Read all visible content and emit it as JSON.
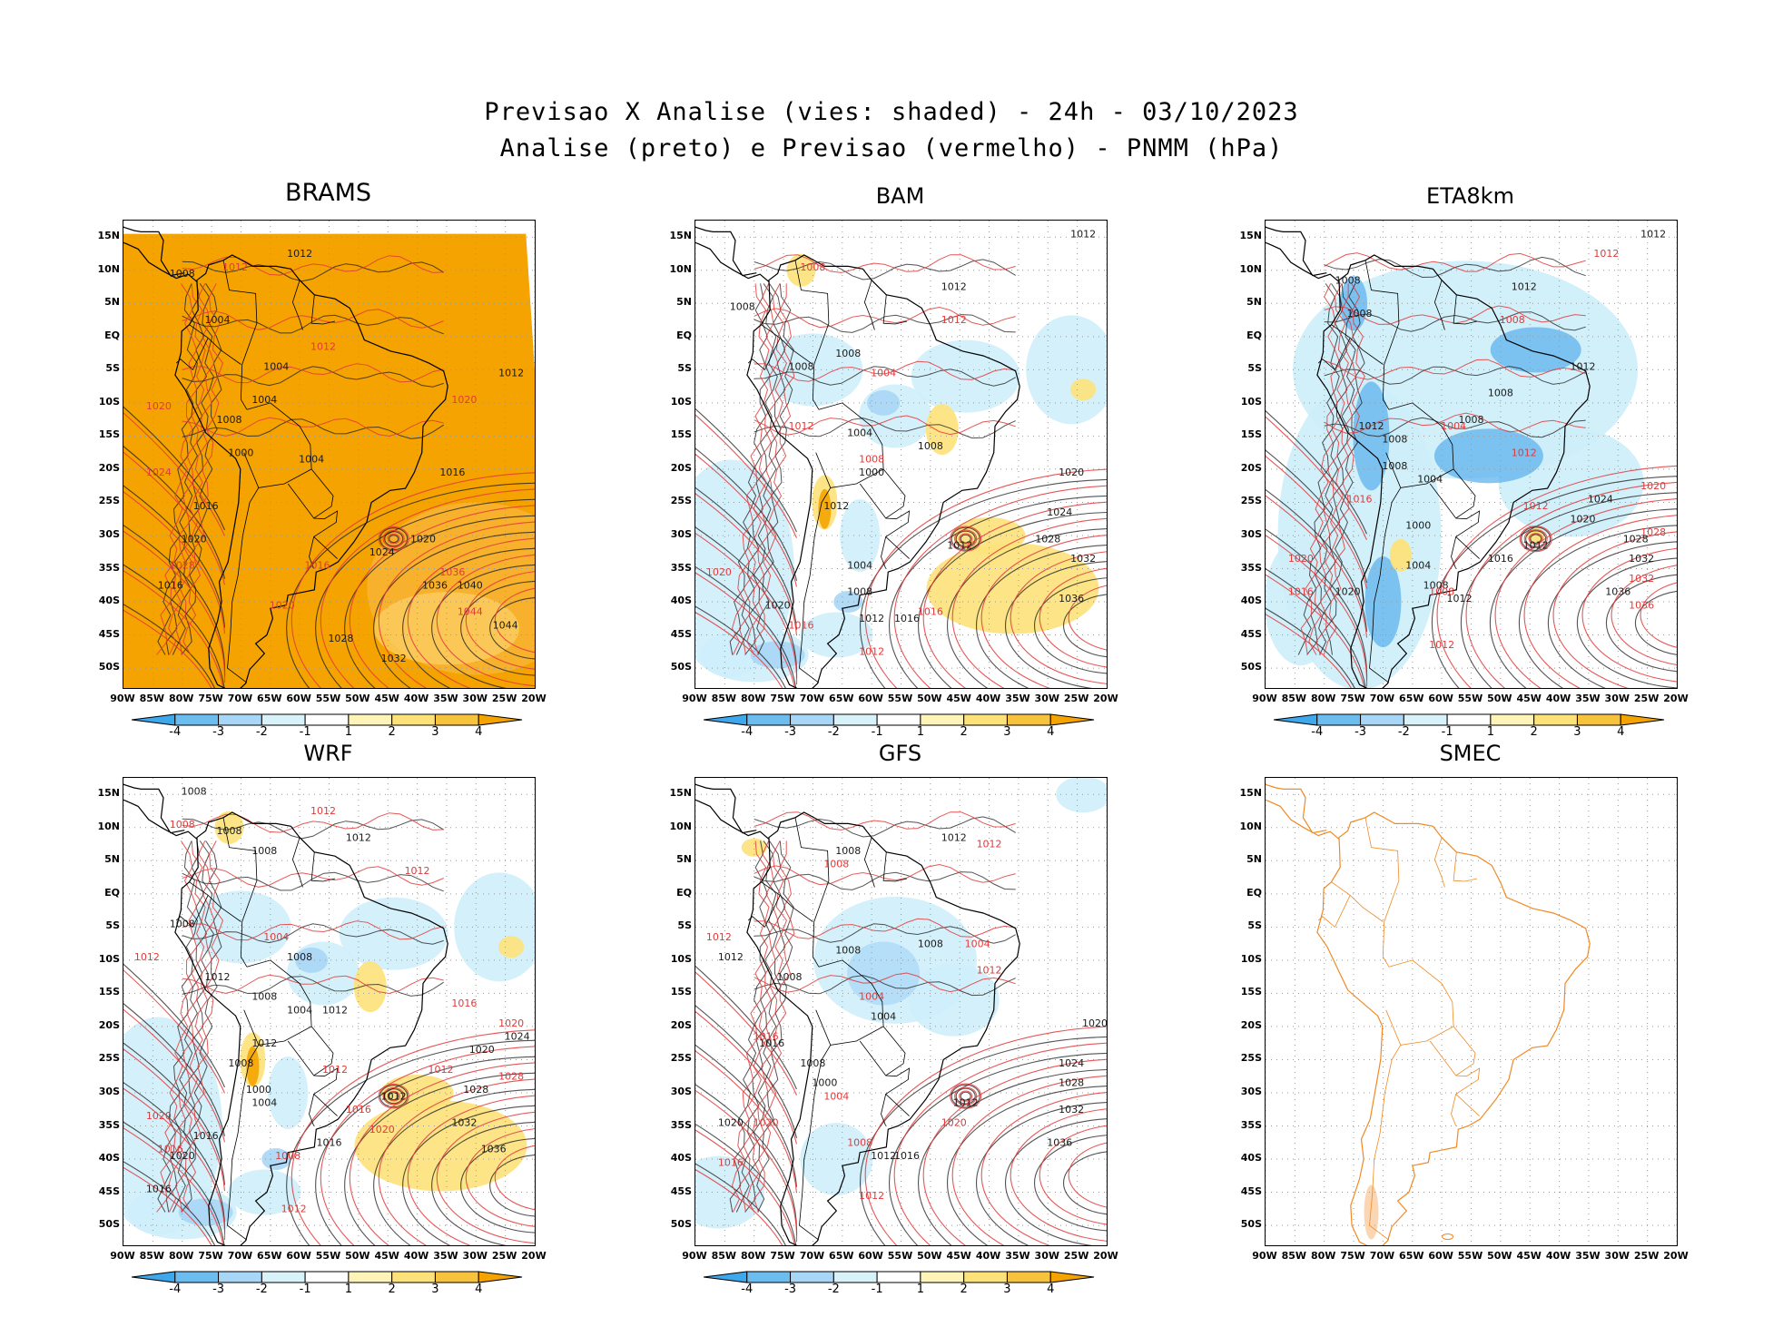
{
  "figure": {
    "title_line1": "Previsao X Analise (vies: shaded) - 24h - 03/10/2023",
    "title_line2": "Analise (preto) e Previsao (vermelho) - PNMM (hPa)"
  },
  "axes": {
    "lat_labels": [
      "15N",
      "10N",
      "5N",
      "EQ",
      "5S",
      "10S",
      "15S",
      "20S",
      "25S",
      "30S",
      "35S",
      "40S",
      "45S",
      "50S"
    ],
    "lon_labels": [
      "90W",
      "85W",
      "80W",
      "75W",
      "70W",
      "65W",
      "60W",
      "55W",
      "50W",
      "45W",
      "40W",
      "35W",
      "30W",
      "25W",
      "20W"
    ],
    "lat_values": [
      15,
      10,
      5,
      0,
      -5,
      -10,
      -15,
      -20,
      -25,
      -30,
      -35,
      -40,
      -45,
      -50
    ],
    "lon_values": [
      -90,
      -85,
      -80,
      -75,
      -70,
      -65,
      -60,
      -55,
      -50,
      -45,
      -40,
      -35,
      -30,
      -25,
      -20
    ],
    "lat_range": [
      -53,
      17.5
    ],
    "lon_range": [
      -90,
      -20
    ]
  },
  "colorbar": {
    "labels": [
      "-4",
      "-3",
      "-2",
      "-1",
      "1",
      "2",
      "3",
      "4"
    ],
    "colors": [
      "#3ea8ec",
      "#6bbdf0",
      "#a8d6f6",
      "#d8f2fa",
      "#ffffff",
      "#fff4b8",
      "#fde27a",
      "#f8c33c",
      "#f4a300"
    ]
  },
  "colors": {
    "analysis_contour": "#1a1a1a",
    "forecast_contour": "#e23a3a",
    "continent_outline": "#000000",
    "smec_outline": "#f08a24",
    "bias_positive_strong": "#f4a300",
    "bias_positive": "#fde27a",
    "bias_negative": "#a8d6f6",
    "bias_negative_strong": "#5fb3ee"
  },
  "panels": [
    {
      "name": "BRAMS",
      "bias": "strong-positive",
      "analysis_labels": [
        {
          "lon": -60,
          "lat": 12,
          "v": "1012"
        },
        {
          "lon": -80,
          "lat": 9,
          "v": "1008"
        },
        {
          "lon": -74,
          "lat": 2,
          "v": "1004"
        },
        {
          "lon": -64,
          "lat": -5,
          "v": "1004"
        },
        {
          "lon": -66,
          "lat": -10,
          "v": "1004"
        },
        {
          "lon": -72,
          "lat": -13,
          "v": "1008"
        },
        {
          "lon": -70,
          "lat": -18,
          "v": "1000"
        },
        {
          "lon": -58,
          "lat": -19,
          "v": "1004"
        },
        {
          "lon": -76,
          "lat": -26,
          "v": "1016"
        },
        {
          "lon": -78,
          "lat": -31,
          "v": "1020"
        },
        {
          "lon": -82,
          "lat": -38,
          "v": "1016"
        },
        {
          "lon": -46,
          "lat": -33,
          "v": "1024"
        },
        {
          "lon": -37,
          "lat": -38,
          "v": "1036"
        },
        {
          "lon": -31,
          "lat": -38,
          "v": "1040"
        },
        {
          "lon": -25,
          "lat": -44,
          "v": "1044"
        },
        {
          "lon": -53,
          "lat": -46,
          "v": "1028"
        },
        {
          "lon": -44,
          "lat": -49,
          "v": "1032"
        },
        {
          "lon": -34,
          "lat": -21,
          "v": "1016"
        },
        {
          "lon": -39,
          "lat": -31,
          "v": "1020"
        },
        {
          "lon": -24,
          "lat": -6,
          "v": "1012"
        }
      ],
      "forecast_labels": [
        {
          "lon": -71,
          "lat": 10,
          "v": "1012"
        },
        {
          "lon": -56,
          "lat": -2,
          "v": "1012"
        },
        {
          "lon": -84,
          "lat": -11,
          "v": "1020"
        },
        {
          "lon": -84,
          "lat": -21,
          "v": "1024"
        },
        {
          "lon": -80,
          "lat": -35,
          "v": "1028"
        },
        {
          "lon": -63,
          "lat": -41,
          "v": "1020"
        },
        {
          "lon": -57,
          "lat": -35,
          "v": "1016"
        },
        {
          "lon": -32,
          "lat": -10,
          "v": "1020"
        },
        {
          "lon": -34,
          "lat": -36,
          "v": "1036"
        },
        {
          "lon": -31,
          "lat": -42,
          "v": "1044"
        }
      ]
    },
    {
      "name": "BAM",
      "bias": "mixed",
      "analysis_labels": [
        {
          "lon": -24,
          "lat": 15,
          "v": "1012"
        },
        {
          "lon": -46,
          "lat": 7,
          "v": "1012"
        },
        {
          "lon": -82,
          "lat": 4,
          "v": "1008"
        },
        {
          "lon": -72,
          "lat": -5,
          "v": "1008"
        },
        {
          "lon": -64,
          "lat": -3,
          "v": "1008"
        },
        {
          "lon": -62,
          "lat": -15,
          "v": "1004"
        },
        {
          "lon": -60,
          "lat": -21,
          "v": "1000"
        },
        {
          "lon": -66,
          "lat": -26,
          "v": "1012"
        },
        {
          "lon": -62,
          "lat": -35,
          "v": "1004"
        },
        {
          "lon": -62,
          "lat": -39,
          "v": "1008"
        },
        {
          "lon": -60,
          "lat": -43,
          "v": "1012"
        },
        {
          "lon": -45,
          "lat": -32,
          "v": "1012"
        },
        {
          "lon": -26,
          "lat": -21,
          "v": "1020"
        },
        {
          "lon": -28,
          "lat": -27,
          "v": "1024"
        },
        {
          "lon": -30,
          "lat": -31,
          "v": "1028"
        },
        {
          "lon": -24,
          "lat": -34,
          "v": "1032"
        },
        {
          "lon": -26,
          "lat": -40,
          "v": "1036"
        },
        {
          "lon": -54,
          "lat": -43,
          "v": "1016"
        },
        {
          "lon": -76,
          "lat": -41,
          "v": "1020"
        },
        {
          "lon": -50,
          "lat": -17,
          "v": "1008"
        }
      ],
      "forecast_labels": [
        {
          "lon": -70,
          "lat": 10,
          "v": "1008"
        },
        {
          "lon": -46,
          "lat": 2,
          "v": "1012"
        },
        {
          "lon": -58,
          "lat": -6,
          "v": "1004"
        },
        {
          "lon": -72,
          "lat": -14,
          "v": "1012"
        },
        {
          "lon": -60,
          "lat": -19,
          "v": "1008"
        },
        {
          "lon": -50,
          "lat": -42,
          "v": "1016"
        },
        {
          "lon": -86,
          "lat": -36,
          "v": "1020"
        },
        {
          "lon": -60,
          "lat": -48,
          "v": "1012"
        },
        {
          "lon": -72,
          "lat": -44,
          "v": "1016"
        }
      ]
    },
    {
      "name": "ETA8km",
      "bias": "negative",
      "analysis_labels": [
        {
          "lon": -24,
          "lat": 15,
          "v": "1012"
        },
        {
          "lon": -46,
          "lat": 7,
          "v": "1012"
        },
        {
          "lon": -76,
          "lat": 8,
          "v": "1008"
        },
        {
          "lon": -74,
          "lat": 3,
          "v": "1008"
        },
        {
          "lon": -36,
          "lat": -5,
          "v": "1012"
        },
        {
          "lon": -50,
          "lat": -9,
          "v": "1008"
        },
        {
          "lon": -55,
          "lat": -13,
          "v": "1008"
        },
        {
          "lon": -68,
          "lat": -16,
          "v": "1008"
        },
        {
          "lon": -72,
          "lat": -14,
          "v": "1012"
        },
        {
          "lon": -68,
          "lat": -20,
          "v": "1008"
        },
        {
          "lon": -62,
          "lat": -22,
          "v": "1004"
        },
        {
          "lon": -64,
          "lat": -29,
          "v": "1000"
        },
        {
          "lon": -64,
          "lat": -35,
          "v": "1004"
        },
        {
          "lon": -61,
          "lat": -38,
          "v": "1008"
        },
        {
          "lon": -57,
          "lat": -40,
          "v": "1012"
        },
        {
          "lon": -44,
          "lat": -32,
          "v": "1012"
        },
        {
          "lon": -50,
          "lat": -34,
          "v": "1016"
        },
        {
          "lon": -33,
          "lat": -25,
          "v": "1024"
        },
        {
          "lon": -36,
          "lat": -28,
          "v": "1020"
        },
        {
          "lon": -27,
          "lat": -31,
          "v": "1028"
        },
        {
          "lon": -26,
          "lat": -34,
          "v": "1032"
        },
        {
          "lon": -30,
          "lat": -39,
          "v": "1036"
        },
        {
          "lon": -76,
          "lat": -39,
          "v": "1020"
        }
      ],
      "forecast_labels": [
        {
          "lon": -32,
          "lat": 12,
          "v": "1012"
        },
        {
          "lon": -48,
          "lat": 2,
          "v": "1008"
        },
        {
          "lon": -58,
          "lat": -14,
          "v": "1004"
        },
        {
          "lon": -46,
          "lat": -18,
          "v": "1012"
        },
        {
          "lon": -74,
          "lat": -25,
          "v": "1016"
        },
        {
          "lon": -24,
          "lat": -23,
          "v": "1020"
        },
        {
          "lon": -24,
          "lat": -30,
          "v": "1028"
        },
        {
          "lon": -26,
          "lat": -37,
          "v": "1032"
        },
        {
          "lon": -26,
          "lat": -41,
          "v": "1036"
        },
        {
          "lon": -84,
          "lat": -34,
          "v": "1020"
        },
        {
          "lon": -84,
          "lat": -39,
          "v": "1016"
        },
        {
          "lon": -60,
          "lat": -39,
          "v": "1008"
        },
        {
          "lon": -60,
          "lat": -47,
          "v": "1012"
        },
        {
          "lon": -44,
          "lat": -26,
          "v": "1012"
        }
      ]
    },
    {
      "name": "WRF",
      "bias": "mixed",
      "analysis_labels": [
        {
          "lon": -78,
          "lat": 15,
          "v": "1008"
        },
        {
          "lon": -50,
          "lat": 8,
          "v": "1012"
        },
        {
          "lon": -66,
          "lat": 6,
          "v": "1008"
        },
        {
          "lon": -72,
          "lat": 9,
          "v": "1008"
        },
        {
          "lon": -80,
          "lat": -5,
          "v": "1008"
        },
        {
          "lon": -60,
          "lat": -10,
          "v": "1008"
        },
        {
          "lon": -74,
          "lat": -13,
          "v": "1012"
        },
        {
          "lon": -66,
          "lat": -16,
          "v": "1008"
        },
        {
          "lon": -60,
          "lat": -18,
          "v": "1004"
        },
        {
          "lon": -54,
          "lat": -18,
          "v": "1012"
        },
        {
          "lon": -66,
          "lat": -23,
          "v": "1012"
        },
        {
          "lon": -70,
          "lat": -26,
          "v": "1008"
        },
        {
          "lon": -67,
          "lat": -30,
          "v": "1000"
        },
        {
          "lon": -66,
          "lat": -32,
          "v": "1004"
        },
        {
          "lon": -55,
          "lat": -38,
          "v": "1016"
        },
        {
          "lon": -76,
          "lat": -37,
          "v": "1016"
        },
        {
          "lon": -80,
          "lat": -40,
          "v": "1020"
        },
        {
          "lon": -84,
          "lat": -45,
          "v": "1016"
        },
        {
          "lon": -44,
          "lat": -31,
          "v": "1012"
        },
        {
          "lon": -29,
          "lat": -24,
          "v": "1020"
        },
        {
          "lon": -32,
          "lat": -35,
          "v": "1032"
        },
        {
          "lon": -27,
          "lat": -39,
          "v": "1036"
        },
        {
          "lon": -30,
          "lat": -30,
          "v": "1028"
        },
        {
          "lon": -23,
          "lat": -22,
          "v": "1024"
        }
      ],
      "forecast_labels": [
        {
          "lon": -56,
          "lat": 12,
          "v": "1012"
        },
        {
          "lon": -80,
          "lat": 10,
          "v": "1008"
        },
        {
          "lon": -40,
          "lat": 3,
          "v": "1012"
        },
        {
          "lon": -86,
          "lat": -10,
          "v": "1012"
        },
        {
          "lon": -64,
          "lat": -7,
          "v": "1004"
        },
        {
          "lon": -32,
          "lat": -17,
          "v": "1016"
        },
        {
          "lon": -24,
          "lat": -20,
          "v": "1020"
        },
        {
          "lon": -24,
          "lat": -28,
          "v": "1028"
        },
        {
          "lon": -36,
          "lat": -27,
          "v": "1012"
        },
        {
          "lon": -50,
          "lat": -33,
          "v": "1016"
        },
        {
          "lon": -82,
          "lat": -39,
          "v": "1016"
        },
        {
          "lon": -84,
          "lat": -34,
          "v": "1020"
        },
        {
          "lon": -54,
          "lat": -27,
          "v": "1012"
        },
        {
          "lon": -62,
          "lat": -40,
          "v": "1008"
        },
        {
          "lon": -61,
          "lat": -48,
          "v": "1012"
        },
        {
          "lon": -46,
          "lat": -36,
          "v": "1020"
        }
      ]
    },
    {
      "name": "GFS",
      "bias": "weak-negative",
      "analysis_labels": [
        {
          "lon": -46,
          "lat": 8,
          "v": "1012"
        },
        {
          "lon": -64,
          "lat": 6,
          "v": "1008"
        },
        {
          "lon": -64,
          "lat": -9,
          "v": "1008"
        },
        {
          "lon": -50,
          "lat": -8,
          "v": "1008"
        },
        {
          "lon": -74,
          "lat": -13,
          "v": "1008"
        },
        {
          "lon": -84,
          "lat": -10,
          "v": "1012"
        },
        {
          "lon": -58,
          "lat": -19,
          "v": "1004"
        },
        {
          "lon": -68,
          "lat": -29,
          "v": "1000"
        },
        {
          "lon": -70,
          "lat": -26,
          "v": "1008"
        },
        {
          "lon": -77,
          "lat": -23,
          "v": "1016"
        },
        {
          "lon": -84,
          "lat": -35,
          "v": "1020"
        },
        {
          "lon": -58,
          "lat": -40,
          "v": "1012"
        },
        {
          "lon": -54,
          "lat": -40,
          "v": "1016"
        },
        {
          "lon": -44,
          "lat": -32,
          "v": "1012"
        },
        {
          "lon": -22,
          "lat": -20,
          "v": "1020"
        },
        {
          "lon": -26,
          "lat": -26,
          "v": "1024"
        },
        {
          "lon": -26,
          "lat": -29,
          "v": "1028"
        },
        {
          "lon": -26,
          "lat": -33,
          "v": "1032"
        },
        {
          "lon": -28,
          "lat": -38,
          "v": "1036"
        }
      ],
      "forecast_labels": [
        {
          "lon": -40,
          "lat": 7,
          "v": "1012"
        },
        {
          "lon": -66,
          "lat": 4,
          "v": "1008"
        },
        {
          "lon": -86,
          "lat": -7,
          "v": "1012"
        },
        {
          "lon": -42,
          "lat": -8,
          "v": "1004"
        },
        {
          "lon": -40,
          "lat": -12,
          "v": "1012"
        },
        {
          "lon": -60,
          "lat": -16,
          "v": "1004"
        },
        {
          "lon": -78,
          "lat": -22,
          "v": "1016"
        },
        {
          "lon": -66,
          "lat": -31,
          "v": "1004"
        },
        {
          "lon": -78,
          "lat": -35,
          "v": "1020"
        },
        {
          "lon": -84,
          "lat": -41,
          "v": "1016"
        },
        {
          "lon": -62,
          "lat": -38,
          "v": "1008"
        },
        {
          "lon": -60,
          "lat": -46,
          "v": "1012"
        },
        {
          "lon": -46,
          "lat": -35,
          "v": "1020"
        }
      ]
    },
    {
      "name": "SMEC",
      "bias": "none",
      "analysis_labels": [],
      "forecast_labels": []
    }
  ]
}
